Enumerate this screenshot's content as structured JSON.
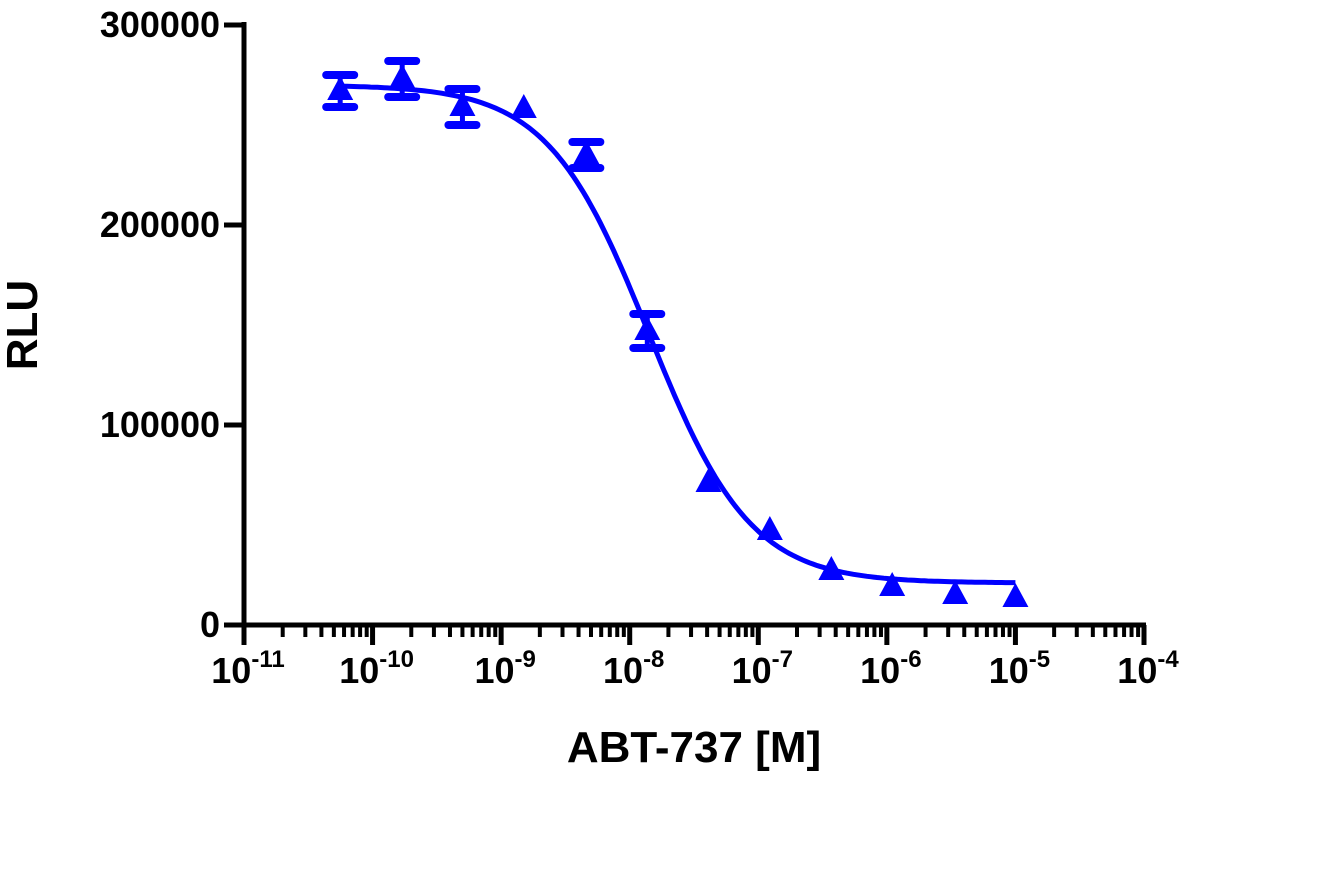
{
  "chart_data": {
    "type": "scatter",
    "title": "",
    "xlabel": "ABT-737 [M]",
    "ylabel": "RLU",
    "x_scale": "log",
    "xlim": [
      1e-11,
      0.0001
    ],
    "ylim": [
      0,
      300000
    ],
    "x_tick_exponents": [
      -11,
      -10,
      -9,
      -8,
      -7,
      -6,
      -5,
      -4
    ],
    "y_ticks": [
      0,
      100000,
      200000,
      300000
    ],
    "y_tick_labels": [
      "0",
      "100000",
      "200000",
      "300000"
    ],
    "grid": false,
    "marker": "triangle",
    "color": "#0000ff",
    "points": [
      {
        "x": 5.6e-11,
        "y": 267000,
        "err": 8000
      },
      {
        "x": 1.7e-10,
        "y": 273000,
        "err": 9000
      },
      {
        "x": 5e-10,
        "y": 259000,
        "err": 9000
      },
      {
        "x": 1.5e-09,
        "y": 258000,
        "err": 0
      },
      {
        "x": 4.6e-09,
        "y": 235000,
        "err": 6500
      },
      {
        "x": 1.37e-08,
        "y": 147000,
        "err": 8500
      },
      {
        "x": 4.1e-08,
        "y": 71000,
        "err": 0
      },
      {
        "x": 1.23e-07,
        "y": 47000,
        "err": 0
      },
      {
        "x": 3.7e-07,
        "y": 27000,
        "err": 0
      },
      {
        "x": 1.1e-06,
        "y": 19000,
        "err": 0
      },
      {
        "x": 3.4e-06,
        "y": 15000,
        "err": 0
      },
      {
        "x": 1e-05,
        "y": 13500,
        "err": 0
      }
    ],
    "fit_curve": {
      "model": "four-parameter logistic",
      "top": 270000,
      "bottom": 21000,
      "log_ic50": -7.85,
      "hill_slope": 1.1,
      "x_range": [
        5.6e-11,
        1e-05
      ]
    }
  }
}
